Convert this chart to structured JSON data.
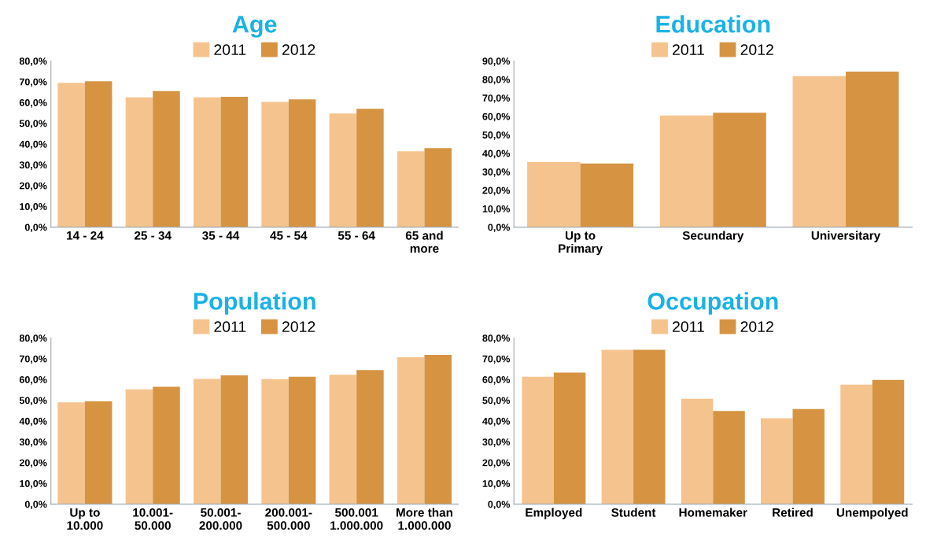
{
  "chart_data": [
    {
      "type": "bar",
      "title": "Age",
      "categories": [
        "14 - 24",
        "25 - 34",
        "35 - 44",
        "45 - 54",
        "55 - 64",
        "65 and\nmore"
      ],
      "series": [
        {
          "name": "2011",
          "color": "#f5c48e",
          "values": [
            69.5,
            62.5,
            62.5,
            60.3,
            54.7,
            36.5
          ]
        },
        {
          "name": "2012",
          "color": "#d69442",
          "values": [
            70.2,
            65.5,
            62.7,
            61.5,
            57.0,
            38.0
          ]
        }
      ],
      "ylim": [
        0,
        80
      ],
      "yticks": [
        {
          "value": 0,
          "label": "0,0%"
        },
        {
          "value": 10,
          "label": "10,0%"
        },
        {
          "value": 20,
          "label": "20,0%"
        },
        {
          "value": 30,
          "label": "30,0%"
        },
        {
          "value": 40,
          "label": "40,0%"
        },
        {
          "value": 50,
          "label": "50,0%"
        },
        {
          "value": 60,
          "label": "60,0%"
        },
        {
          "value": 70,
          "label": "70,0%"
        },
        {
          "value": 80,
          "label": "80,0%"
        }
      ],
      "legend": "top",
      "grid": false
    },
    {
      "type": "bar",
      "title": "Education",
      "categories": [
        "Up to\nPrimary",
        "Secundary",
        "Universitary"
      ],
      "series": [
        {
          "name": "2011",
          "color": "#f5c48e",
          "values": [
            35.2,
            60.5,
            81.8
          ]
        },
        {
          "name": "2012",
          "color": "#d69442",
          "values": [
            34.5,
            62.0,
            84.2
          ]
        }
      ],
      "ylim": [
        0,
        90
      ],
      "yticks": [
        {
          "value": 0,
          "label": "0,0%"
        },
        {
          "value": 10,
          "label": "10,0%"
        },
        {
          "value": 20,
          "label": "20,0%"
        },
        {
          "value": 30,
          "label": "30,0%"
        },
        {
          "value": 40,
          "label": "40,0%"
        },
        {
          "value": 50,
          "label": "50,0%"
        },
        {
          "value": 60,
          "label": "60,0%"
        },
        {
          "value": 70,
          "label": "70,0%"
        },
        {
          "value": 80,
          "label": "80,0%"
        },
        {
          "value": 90,
          "label": "90,0%"
        }
      ],
      "legend": "top",
      "grid": false
    },
    {
      "type": "bar",
      "title": "Population",
      "categories": [
        "Up to\n10.000",
        "10.001-\n50.000",
        "50.001-\n200.000",
        "200.001-\n500.000",
        "500.001\n1.000.000",
        "More than\n1.000.000"
      ],
      "series": [
        {
          "name": "2011",
          "color": "#f5c48e",
          "values": [
            49.0,
            55.3,
            60.3,
            60.2,
            62.3,
            70.7
          ]
        },
        {
          "name": "2012",
          "color": "#d69442",
          "values": [
            49.5,
            56.5,
            62.0,
            61.3,
            64.5,
            71.8
          ]
        }
      ],
      "ylim": [
        0,
        80
      ],
      "yticks": [
        {
          "value": 0,
          "label": "0,0%"
        },
        {
          "value": 10,
          "label": "10,0%"
        },
        {
          "value": 20,
          "label": "20,0%"
        },
        {
          "value": 30,
          "label": "30,0%"
        },
        {
          "value": 40,
          "label": "40,0%"
        },
        {
          "value": 50,
          "label": "50,0%"
        },
        {
          "value": 60,
          "label": "60,0%"
        },
        {
          "value": 70,
          "label": "70,0%"
        },
        {
          "value": 80,
          "label": "80,0%"
        }
      ],
      "legend": "top",
      "grid": false
    },
    {
      "type": "bar",
      "title": "Occupation",
      "categories": [
        "Employed",
        "Student",
        "Homemaker",
        "Retired",
        "Unempolyed"
      ],
      "series": [
        {
          "name": "2011",
          "color": "#f5c48e",
          "values": [
            61.3,
            74.3,
            50.7,
            41.3,
            57.5
          ]
        },
        {
          "name": "2012",
          "color": "#d69442",
          "values": [
            63.3,
            74.3,
            44.8,
            45.8,
            59.8
          ]
        }
      ],
      "ylim": [
        0,
        80
      ],
      "yticks": [
        {
          "value": 0,
          "label": "0,0%"
        },
        {
          "value": 10,
          "label": "10,0%"
        },
        {
          "value": 20,
          "label": "20,0%"
        },
        {
          "value": 30,
          "label": "30,0%"
        },
        {
          "value": 40,
          "label": "40,0%"
        },
        {
          "value": 50,
          "label": "50,0%"
        },
        {
          "value": 60,
          "label": "60,0%"
        },
        {
          "value": 70,
          "label": "70,0%"
        },
        {
          "value": 80,
          "label": "80,0%"
        }
      ],
      "legend": "top",
      "grid": false
    }
  ]
}
